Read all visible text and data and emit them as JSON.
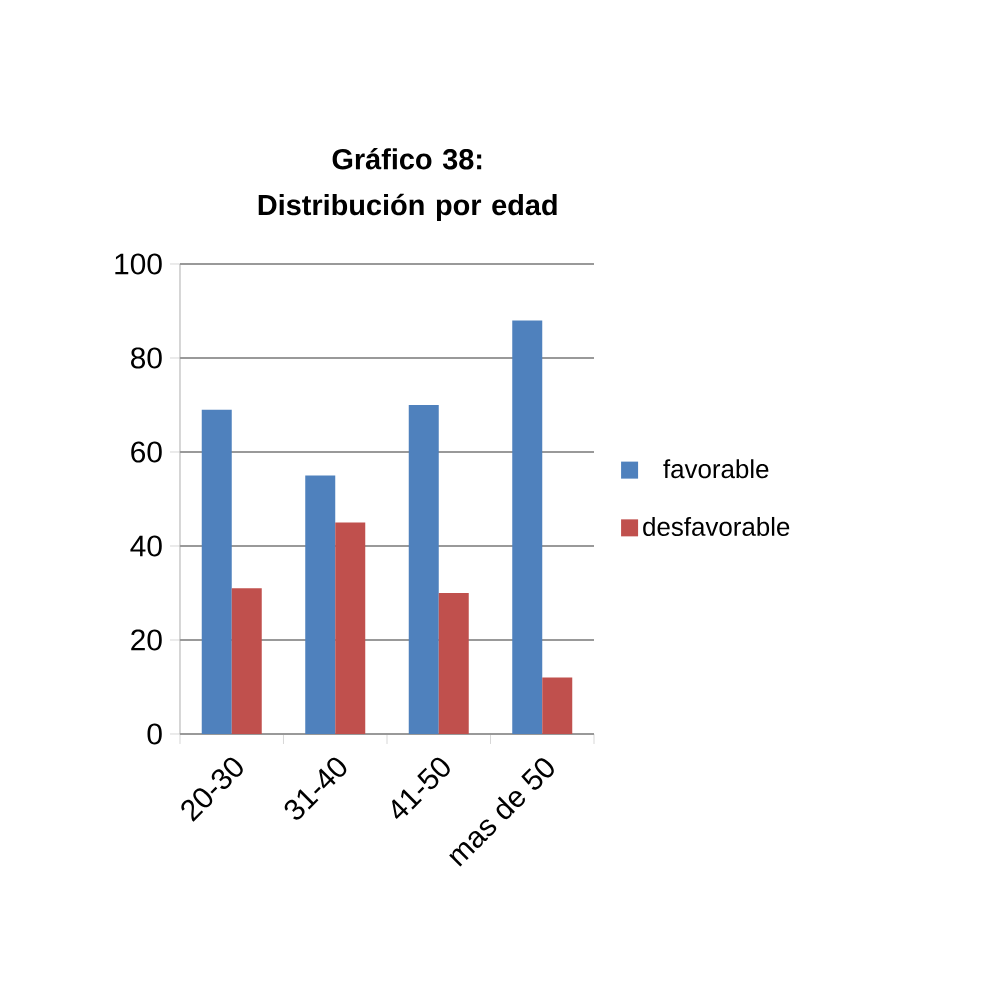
{
  "chart_data": {
    "type": "bar",
    "title": "Gráfico 38: Distribución por edad",
    "categories": [
      "20-30",
      "31-40",
      "41-50",
      "mas de 50"
    ],
    "series": [
      {
        "name": "favorable",
        "color": "#4f81bd",
        "values": [
          69,
          55,
          70,
          88
        ]
      },
      {
        "name": "desfavorable",
        "color": "#c0504d",
        "values": [
          31,
          45,
          30,
          12
        ]
      }
    ],
    "ylim": [
      0,
      100
    ],
    "yticks": [
      0,
      20,
      40,
      60,
      80,
      100
    ],
    "grid": "y",
    "legend": "right"
  }
}
